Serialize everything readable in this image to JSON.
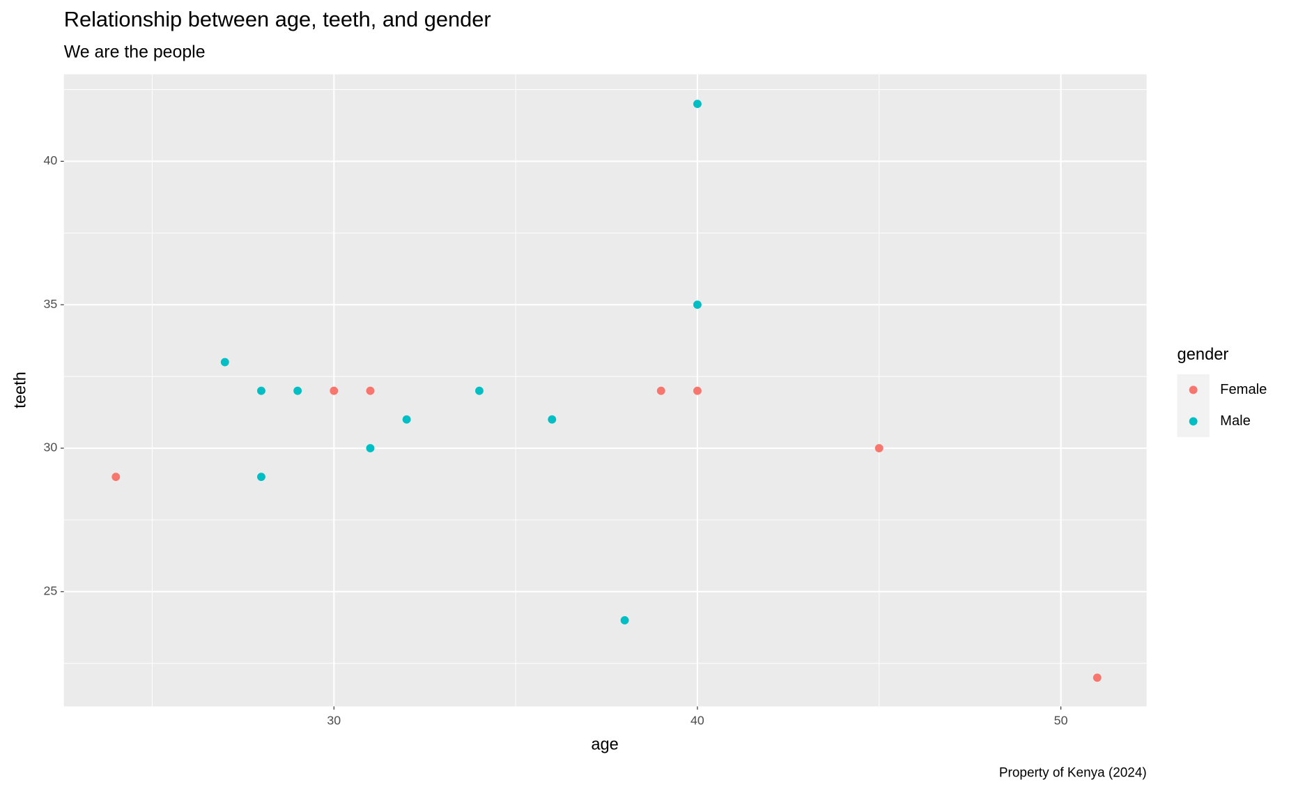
{
  "chart_data": {
    "type": "scatter",
    "title": "Relationship between age, teeth, and gender",
    "subtitle": "We are the people",
    "caption": "Property of Kenya (2024)",
    "x_label": "age",
    "y_label": "teeth",
    "legend_title": "gender",
    "legend_position": "right",
    "xlim": [
      22.57,
      52.36
    ],
    "xticks": [
      30,
      40,
      50
    ],
    "ylim": [
      21.0,
      43.03
    ],
    "yticks": [
      25,
      30,
      35,
      40
    ],
    "grid": true,
    "series": [
      {
        "name": "Female",
        "color": "#F8766D",
        "x": [
          24,
          30,
          31,
          39,
          40,
          45,
          51
        ],
        "values": [
          29,
          32,
          32,
          32,
          32,
          30,
          22
        ]
      },
      {
        "name": "Male",
        "color": "#00BFC4",
        "x": [
          27,
          28,
          29,
          28,
          31,
          32,
          34,
          36,
          38,
          40,
          40
        ],
        "values": [
          33,
          32,
          32,
          29,
          30,
          31,
          32,
          31,
          24,
          42,
          35
        ]
      }
    ]
  }
}
